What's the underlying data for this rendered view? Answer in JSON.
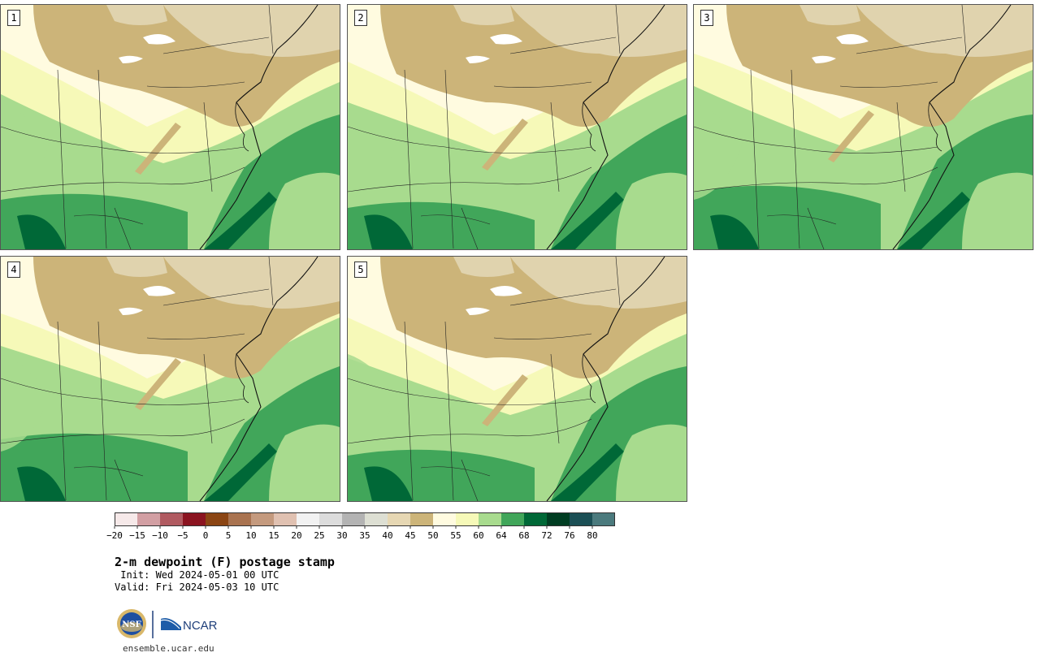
{
  "stamps": [
    {
      "label": "1"
    },
    {
      "label": "2"
    },
    {
      "label": "3"
    },
    {
      "label": "4"
    },
    {
      "label": "5"
    }
  ],
  "colorbar": {
    "colors": [
      "#f6e9e9",
      "#d29fa3",
      "#b05a60",
      "#8b1420",
      "#8b4513",
      "#a97350",
      "#c49a7e",
      "#e0c1b1",
      "#f2f2f2",
      "#dcdcdc",
      "#b3b3b3",
      "#dddfd3",
      "#e6d7b3",
      "#ccb479",
      "#fffbe0",
      "#f6f9b8",
      "#a8db8e",
      "#41a65a",
      "#006837",
      "#003d22",
      "#1b4f55",
      "#4b7a7d"
    ],
    "ticks": [
      "−20",
      "−15",
      "−10",
      "−5",
      "0",
      "5",
      "10",
      "15",
      "20",
      "25",
      "30",
      "35",
      "40",
      "45",
      "50",
      "55",
      "60",
      "64",
      "68",
      "72",
      "76",
      "80"
    ]
  },
  "title": "2-m dewpoint (F) postage stamp",
  "init": " Init: Wed 2024-05-01 00 UTC",
  "valid": "Valid: Fri 2024-05-03 10 UTC",
  "logo": {
    "nsf": "NSF",
    "ncar": "NCAR"
  },
  "footer_url": "ensemble.ucar.edu"
}
